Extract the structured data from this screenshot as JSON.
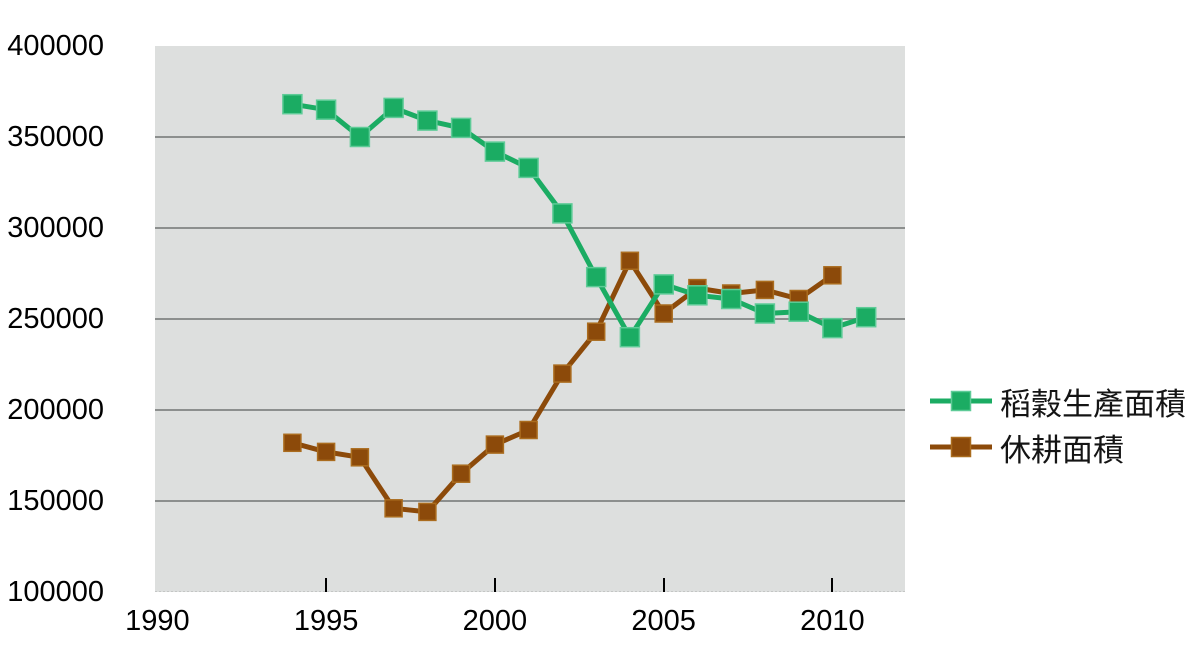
{
  "chart_data": {
    "type": "line",
    "title": "",
    "xlabel": "",
    "ylabel": "",
    "x": [
      1994,
      1995,
      1996,
      1997,
      1998,
      1999,
      2000,
      2001,
      2002,
      2003,
      2004,
      2005,
      2006,
      2007,
      2008,
      2009,
      2010,
      2011
    ],
    "series": [
      {
        "key": "rice-production-area",
        "name": "稻穀生產面積",
        "color": "#1bac63",
        "marker_edge": "#5ecb97",
        "marker_size": 19,
        "values": [
          368000,
          365000,
          350000,
          366000,
          359000,
          355000,
          342000,
          333000,
          308000,
          273000,
          240000,
          269000,
          263000,
          261000,
          253000,
          254000,
          245000,
          251000
        ]
      },
      {
        "key": "fallow-area",
        "name": "休耕面積",
        "color": "#8c4a0a",
        "marker_edge": "#aa6c1e",
        "marker_size": 17,
        "values": [
          182000,
          177000,
          174000,
          146000,
          144000,
          165000,
          181000,
          189000,
          220000,
          243000,
          282000,
          253000,
          267000,
          264000,
          266000,
          261000,
          274000,
          null
        ]
      }
    ],
    "x_ticks": [
      1990,
      1995,
      2000,
      2005,
      2010
    ],
    "y_ticks": [
      400000,
      350000,
      300000,
      250000,
      200000,
      150000,
      100000
    ],
    "xlim": [
      1989.93,
      2012.15
    ],
    "ylim": [
      100000,
      400000
    ],
    "grid": "horizontal",
    "grid_color": "#8c8f8e",
    "plot_bg": "#dddfde",
    "legend_position": "right-middle"
  }
}
